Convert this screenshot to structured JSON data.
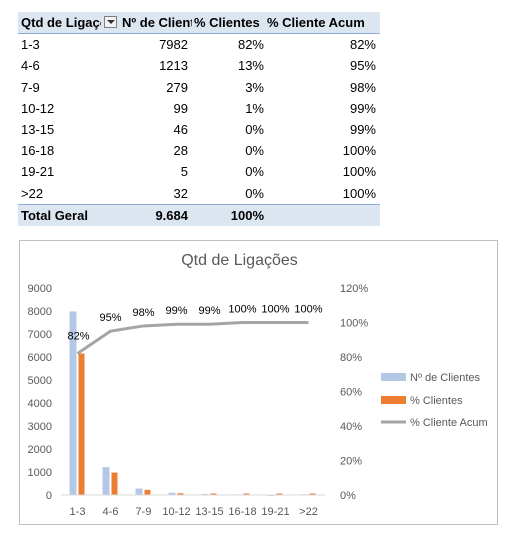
{
  "pivot": {
    "headers": [
      "Qtd de Ligações",
      "Nº de Clientes",
      "% Clientes",
      "% Cliente Acum"
    ],
    "rows": [
      [
        "1-3",
        "7982",
        "82%",
        "82%"
      ],
      [
        "4-6",
        "1213",
        "13%",
        "95%"
      ],
      [
        "7-9",
        "279",
        "3%",
        "98%"
      ],
      [
        "10-12",
        "99",
        "1%",
        "99%"
      ],
      [
        "13-15",
        "46",
        "0%",
        "99%"
      ],
      [
        "16-18",
        "28",
        "0%",
        "100%"
      ],
      [
        "19-21",
        "5",
        "0%",
        "100%"
      ],
      [
        ">22",
        "32",
        "0%",
        "100%"
      ]
    ],
    "total": {
      "label": "Total Geral",
      "clientes": "9.684",
      "pct": "100%"
    }
  },
  "chart_data": {
    "type": "bar",
    "title": "Qtd de Ligações",
    "categories": [
      "1-3",
      "4-6",
      "7-9",
      "10-12",
      "13-15",
      "16-18",
      "19-21",
      ">22"
    ],
    "series": [
      {
        "name": "Nº de Clientes",
        "kind": "bar",
        "axis": "left",
        "color": "#b4c7e7",
        "values": [
          7982,
          1213,
          279,
          99,
          46,
          28,
          5,
          32
        ]
      },
      {
        "name": "% Clientes",
        "kind": "bar",
        "axis": "right",
        "color": "#ed7d31",
        "values": [
          82,
          13,
          3,
          1,
          0,
          0,
          0,
          0
        ]
      },
      {
        "name": "% Cliente Acum",
        "kind": "line",
        "axis": "right",
        "color": "#a5a5a5",
        "values": [
          82,
          95,
          98,
          99,
          99,
          100,
          100,
          100
        ],
        "labels": [
          "82%",
          "95%",
          "98%",
          "99%",
          "99%",
          "100%",
          "100%",
          "100%"
        ]
      }
    ],
    "ylim": [
      0,
      9000
    ],
    "yticks": [
      "0",
      "1000",
      "2000",
      "3000",
      "4000",
      "5000",
      "6000",
      "7000",
      "8000",
      "9000"
    ],
    "y2lim": [
      0,
      120
    ],
    "y2ticks": [
      "0%",
      "20%",
      "40%",
      "60%",
      "80%",
      "100%",
      "120%"
    ],
    "legend": "right",
    "grid": false
  }
}
